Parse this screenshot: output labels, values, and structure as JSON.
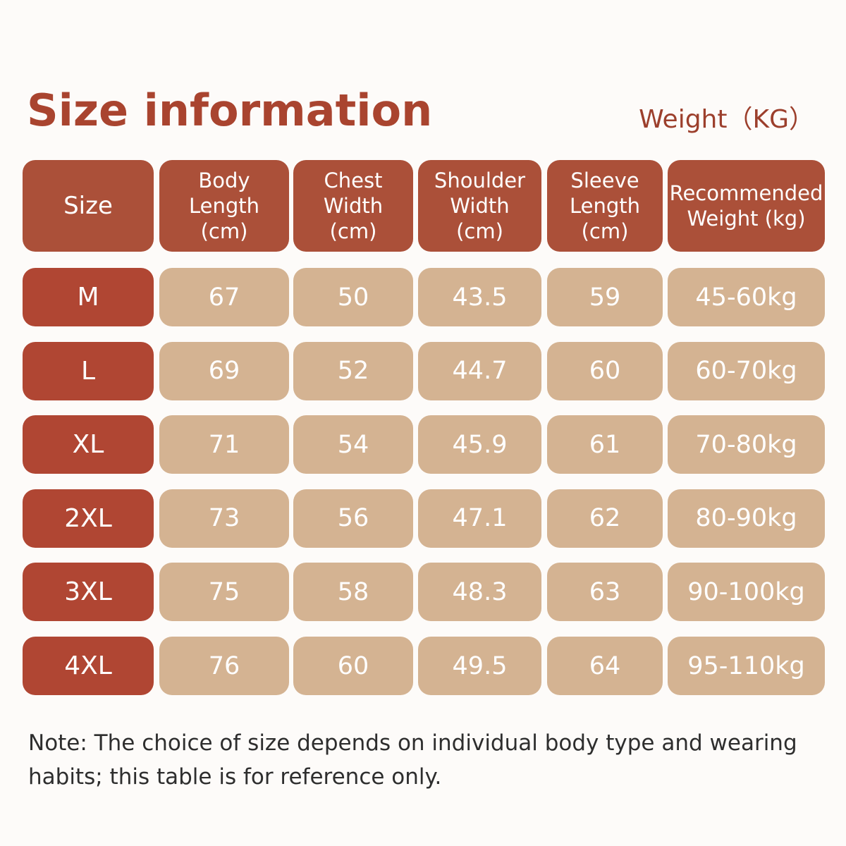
{
  "header": {
    "title": "Size information",
    "subtitle": "Weight（KG）"
  },
  "table": {
    "columns": [
      [
        "Size"
      ],
      [
        "Body",
        "Length",
        "(cm)"
      ],
      [
        "Chest",
        "Width",
        "(cm)"
      ],
      [
        "Shoulder",
        "Width",
        "(cm)"
      ],
      [
        "Sleeve",
        "Length",
        "(cm)"
      ],
      [
        "Recommended",
        "Weight (kg)"
      ]
    ],
    "rows": [
      [
        "M",
        "67",
        "50",
        "43.5",
        "59",
        "45-60kg"
      ],
      [
        "L",
        "69",
        "52",
        "44.7",
        "60",
        "60-70kg"
      ],
      [
        "XL",
        "71",
        "54",
        "45.9",
        "61",
        "70-80kg"
      ],
      [
        "2XL",
        "73",
        "56",
        "47.1",
        "62",
        "80-90kg"
      ],
      [
        "3XL",
        "75",
        "58",
        "48.3",
        "63",
        "90-100kg"
      ],
      [
        "4XL",
        "76",
        "60",
        "49.5",
        "64",
        "95-110kg"
      ]
    ]
  },
  "note": [
    "Note: The choice of size depends on individual body type and wearing",
    "habits; this table is for reference only."
  ]
}
